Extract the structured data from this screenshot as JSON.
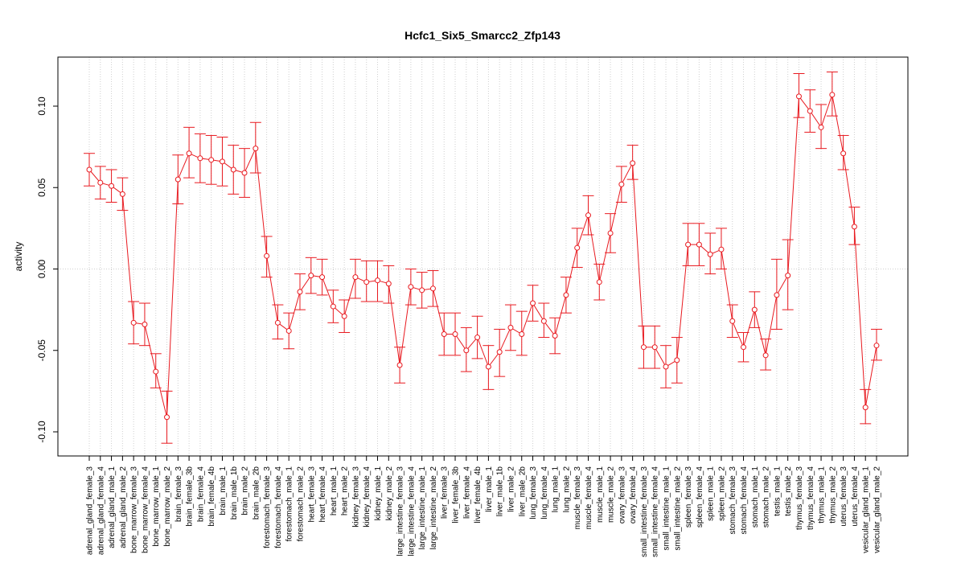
{
  "chart_data": {
    "type": "line",
    "title": "Hcfc1_Six5_Smarcc2_Zfp143",
    "xlabel": "",
    "ylabel": "activity",
    "ylim": [
      -0.107,
      0.121
    ],
    "yticks": [
      -0.1,
      -0.05,
      0.0,
      0.05,
      0.1
    ],
    "ytick_labels": [
      "-0.10",
      "-0.05",
      "0.00",
      "0.05",
      "0.10"
    ],
    "grid": true,
    "line_color": "#e8191f",
    "grid_color": "#cfcfcf",
    "categories": [
      "adrenal_gland_female_3",
      "adrenal_gland_female_4",
      "adrenal_gland_male_1",
      "adrenal_gland_male_2",
      "bone_marrow_female_3",
      "bone_marrow_female_4",
      "bone_marrow_male_1",
      "bone_marrow_male_2",
      "brain_female_3",
      "brain_female_3b",
      "brain_female_4",
      "brain_female_4b",
      "brain_male_1",
      "brain_male_1b",
      "brain_male_2",
      "brain_male_2b",
      "forestomach_female_3",
      "forestomach_female_4",
      "forestomach_male_1",
      "forestomach_male_2",
      "heart_female_3",
      "heart_female_4",
      "heart_male_1",
      "heart_male_2",
      "kidney_female_3",
      "kidney_female_4",
      "kidney_male_1",
      "kidney_male_2",
      "large_intestine_female_3",
      "large_intestine_female_4",
      "large_intestine_male_1",
      "large_intestine_male_2",
      "liver_female_3",
      "liver_female_3b",
      "liver_female_4",
      "liver_female_4b",
      "liver_male_1",
      "liver_male_1b",
      "liver_male_2",
      "liver_male_2b",
      "lung_female_3",
      "lung_female_4",
      "lung_male_1",
      "lung_male_2",
      "muscle_female_3",
      "muscle_female_4",
      "muscle_male_1",
      "muscle_male_2",
      "ovary_female_3",
      "ovary_female_4",
      "small_intestine_female_3",
      "small_intestine_female_4",
      "small_intestine_male_1",
      "small_intestine_male_2",
      "spleen_female_3",
      "spleen_female_4",
      "spleen_male_1",
      "spleen_male_2",
      "stomach_female_3",
      "stomach_female_4",
      "stomach_male_1",
      "stomach_male_2",
      "testis_male_1",
      "testis_male_2",
      "thymus_female_3",
      "thymus_female_4",
      "thymus_male_1",
      "thymus_male_2",
      "uterus_female_3",
      "uterus_female_4",
      "vesicular_gland_male_1",
      "vesicular_gland_male_2"
    ],
    "values": [
      0.061,
      0.053,
      0.051,
      0.046,
      -0.033,
      -0.034,
      -0.063,
      -0.091,
      0.055,
      0.071,
      0.068,
      0.067,
      0.066,
      0.061,
      0.059,
      0.074,
      0.008,
      -0.033,
      -0.038,
      -0.014,
      -0.004,
      -0.005,
      -0.023,
      -0.029,
      -0.005,
      -0.008,
      -0.007,
      -0.009,
      -0.059,
      -0.011,
      -0.013,
      -0.012,
      -0.04,
      -0.04,
      -0.05,
      -0.042,
      -0.06,
      -0.051,
      -0.036,
      -0.04,
      -0.021,
      -0.032,
      -0.041,
      -0.016,
      0.013,
      0.033,
      -0.008,
      0.022,
      0.052,
      0.065,
      -0.048,
      -0.048,
      -0.06,
      -0.056,
      0.015,
      0.015,
      0.009,
      0.012,
      -0.032,
      -0.048,
      -0.025,
      -0.053,
      -0.016,
      -0.004,
      0.106,
      0.097,
      0.087,
      0.107,
      0.071,
      0.026,
      -0.085,
      -0.047
    ],
    "error_low": [
      0.051,
      0.043,
      0.041,
      0.036,
      -0.046,
      -0.047,
      -0.073,
      -0.107,
      0.04,
      0.056,
      0.053,
      0.052,
      0.051,
      0.046,
      0.044,
      0.059,
      -0.005,
      -0.043,
      -0.049,
      -0.025,
      -0.015,
      -0.016,
      -0.033,
      -0.039,
      -0.018,
      -0.02,
      -0.02,
      -0.021,
      -0.07,
      -0.022,
      -0.024,
      -0.023,
      -0.053,
      -0.053,
      -0.063,
      -0.055,
      -0.074,
      -0.066,
      -0.05,
      -0.053,
      -0.032,
      -0.042,
      -0.052,
      -0.027,
      0.001,
      0.021,
      -0.019,
      0.01,
      0.041,
      0.055,
      -0.061,
      -0.061,
      -0.073,
      -0.07,
      0.002,
      0.002,
      -0.003,
      0.0,
      -0.042,
      -0.057,
      -0.036,
      -0.062,
      -0.037,
      -0.025,
      0.093,
      0.084,
      0.074,
      0.094,
      0.061,
      0.015,
      -0.095,
      -0.056
    ],
    "error_high": [
      0.071,
      0.063,
      0.061,
      0.056,
      -0.02,
      -0.021,
      -0.052,
      -0.075,
      0.07,
      0.087,
      0.083,
      0.082,
      0.081,
      0.076,
      0.074,
      0.09,
      0.02,
      -0.022,
      -0.027,
      -0.003,
      0.007,
      0.006,
      -0.013,
      -0.019,
      0.006,
      0.005,
      0.005,
      0.002,
      -0.048,
      0.0,
      -0.002,
      -0.001,
      -0.027,
      -0.027,
      -0.036,
      -0.029,
      -0.047,
      -0.037,
      -0.022,
      -0.026,
      -0.01,
      -0.021,
      -0.03,
      -0.005,
      0.025,
      0.045,
      0.003,
      0.034,
      0.063,
      0.076,
      -0.035,
      -0.035,
      -0.047,
      -0.042,
      0.028,
      0.028,
      0.022,
      0.025,
      -0.022,
      -0.039,
      -0.014,
      -0.043,
      0.006,
      0.018,
      0.12,
      0.11,
      0.101,
      0.121,
      0.082,
      0.038,
      -0.074,
      -0.037
    ]
  }
}
